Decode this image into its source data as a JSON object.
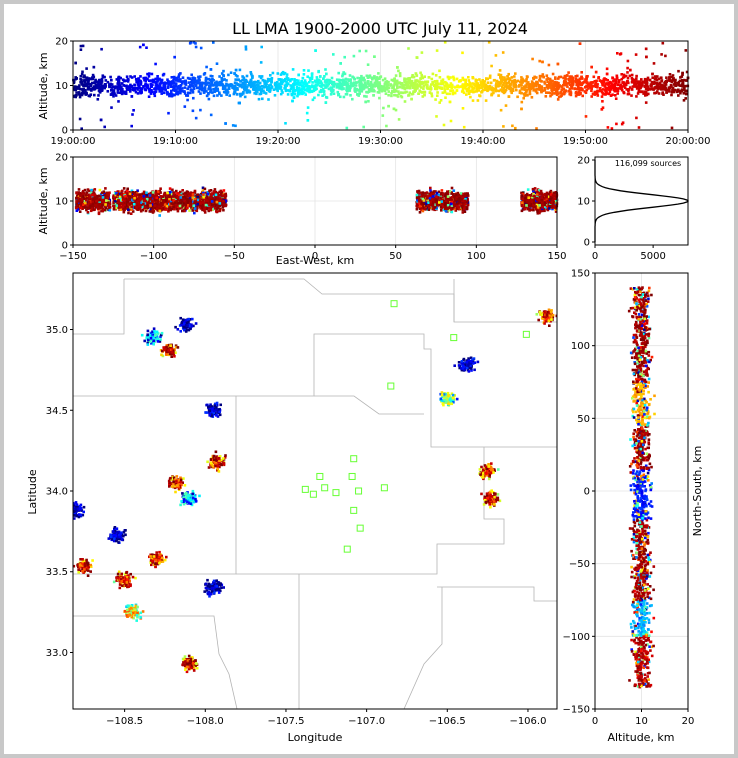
{
  "title": "LL LMA 1900-2000 UTC July 11, 2024",
  "chart_data": [
    {
      "panel": "time-altitude",
      "type": "scatter",
      "xlabel": "",
      "ylabel": "Altitude, km",
      "x_ticks": [
        "19:00:00",
        "19:10:00",
        "19:20:00",
        "19:30:00",
        "19:40:00",
        "19:50:00",
        "20:00:00"
      ],
      "xlim": [
        "19:00:00",
        "20:00:00"
      ],
      "ylim": [
        0,
        20
      ],
      "y_ticks": [
        0,
        10,
        20
      ],
      "colormap": "jet (by time)",
      "source_altitude_center_km": 10,
      "grid": true
    },
    {
      "panel": "east-west-altitude",
      "type": "scatter",
      "xlabel": "East-West, km",
      "ylabel": "Altitude, km",
      "xlim": [
        -150,
        150
      ],
      "x_ticks": [
        -150,
        -100,
        -50,
        0,
        50,
        100,
        150
      ],
      "ylim": [
        0,
        20
      ],
      "y_ticks": [
        0,
        10,
        20
      ],
      "grid": true,
      "clusters_x_km": [
        [
          -148,
          -127
        ],
        [
          -125,
          -55
        ],
        [
          63,
          95
        ],
        [
          128,
          150
        ]
      ]
    },
    {
      "panel": "altitude-histogram",
      "type": "line",
      "annotation": "116,099 sources",
      "xlim": [
        0,
        8000
      ],
      "x_ticks": [
        0,
        5000
      ],
      "ylim": [
        0,
        20
      ],
      "y_ticks": [
        0,
        10,
        20
      ],
      "peak_altitude_km": 10,
      "peak_count": 8000
    },
    {
      "panel": "plan-view",
      "type": "scatter",
      "xlabel": "Longitude",
      "ylabel": "Latitude",
      "xlim": [
        -108.82,
        -105.82
      ],
      "ylim": [
        32.65,
        35.35
      ],
      "x_ticks": [
        -108.5,
        -108.0,
        -107.5,
        -107.0,
        -106.5,
        -106.0
      ],
      "x_tick_labels": [
        "−108.5",
        "−108.0",
        "−107.5",
        "−107.0",
        "−106.5",
        "−106.0"
      ],
      "y_ticks": [
        33.0,
        33.5,
        34.0,
        34.5,
        35.0
      ],
      "y_tick_labels": [
        "33.0",
        "33.5",
        "34.0",
        "34.5",
        "35.0"
      ],
      "stations": [
        [
          -106.83,
          35.16
        ],
        [
          -106.46,
          34.95
        ],
        [
          -106.01,
          34.97
        ],
        [
          -106.85,
          34.65
        ],
        [
          -107.08,
          34.2
        ],
        [
          -107.29,
          34.09
        ],
        [
          -107.09,
          34.09
        ],
        [
          -107.38,
          34.01
        ],
        [
          -107.26,
          34.02
        ],
        [
          -107.33,
          33.98
        ],
        [
          -107.19,
          33.99
        ],
        [
          -107.05,
          34.0
        ],
        [
          -106.89,
          34.02
        ],
        [
          -107.08,
          33.88
        ],
        [
          -107.04,
          33.77
        ],
        [
          -107.12,
          33.64
        ]
      ],
      "storm_cells": [
        {
          "lon": -108.12,
          "lat": 35.03,
          "top": "blue"
        },
        {
          "lon": -108.22,
          "lat": 34.87,
          "top": "red"
        },
        {
          "lon": -108.32,
          "lat": 34.95,
          "top": "green"
        },
        {
          "lon": -107.95,
          "lat": 34.5,
          "top": "blue"
        },
        {
          "lon": -107.93,
          "lat": 34.18,
          "top": "red"
        },
        {
          "lon": -108.18,
          "lat": 34.05,
          "top": "red"
        },
        {
          "lon": -108.1,
          "lat": 33.95,
          "top": "green"
        },
        {
          "lon": -108.3,
          "lat": 33.58,
          "top": "red"
        },
        {
          "lon": -108.55,
          "lat": 33.72,
          "top": "blue"
        },
        {
          "lon": -107.95,
          "lat": 33.4,
          "top": "blue"
        },
        {
          "lon": -108.5,
          "lat": 33.45,
          "top": "red"
        },
        {
          "lon": -108.45,
          "lat": 33.25,
          "top": "orange"
        },
        {
          "lon": -108.1,
          "lat": 32.93,
          "top": "red"
        },
        {
          "lon": -108.75,
          "lat": 33.53,
          "top": "red"
        },
        {
          "lon": -108.8,
          "lat": 33.88,
          "top": "blue"
        },
        {
          "lon": -106.5,
          "lat": 34.57,
          "top": "yellow"
        },
        {
          "lon": -106.38,
          "lat": 34.78,
          "top": "blue"
        },
        {
          "lon": -106.25,
          "lat": 34.12,
          "top": "red"
        },
        {
          "lon": -106.23,
          "lat": 33.95,
          "top": "red"
        },
        {
          "lon": -105.88,
          "lat": 35.08,
          "top": "red"
        }
      ]
    },
    {
      "panel": "altitude-north-south",
      "type": "scatter",
      "xlabel": "Altitude, km",
      "ylabel": "North-South, km",
      "xlim": [
        0,
        20
      ],
      "x_ticks": [
        0,
        10,
        20
      ],
      "ylim": [
        -150,
        150
      ],
      "y_ticks": [
        -150,
        -100,
        -50,
        0,
        50,
        100,
        150
      ],
      "grid": true
    }
  ]
}
